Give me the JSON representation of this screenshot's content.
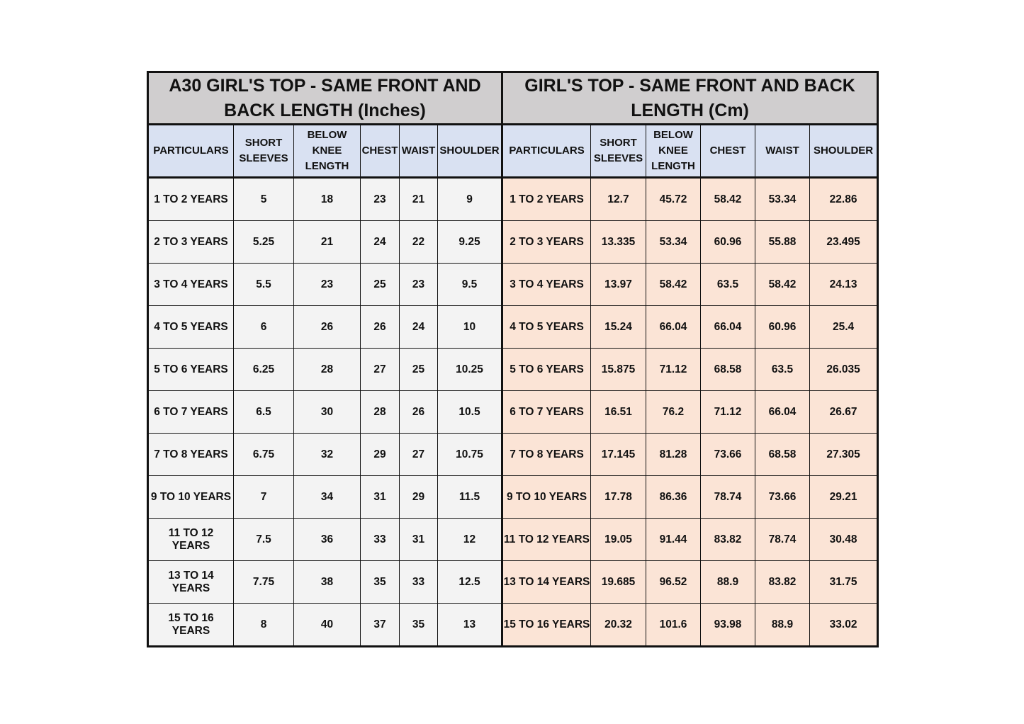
{
  "inches_table": {
    "title": "A30 GIRL'S TOP - SAME FRONT AND BACK LENGTH (Inches)",
    "headers": [
      "PARTICULARS",
      "SHORT SLEEVES",
      "BELOW KNEE LENGTH",
      "CHEST",
      "WAIST",
      "SHOULDER"
    ],
    "rows": [
      [
        "1 TO 2 YEARS",
        "5",
        "18",
        "23",
        "21",
        "9"
      ],
      [
        "2 TO 3 YEARS",
        "5.25",
        "21",
        "24",
        "22",
        "9.25"
      ],
      [
        "3 TO 4 YEARS",
        "5.5",
        "23",
        "25",
        "23",
        "9.5"
      ],
      [
        "4 TO 5 YEARS",
        "6",
        "26",
        "26",
        "24",
        "10"
      ],
      [
        "5 TO 6 YEARS",
        "6.25",
        "28",
        "27",
        "25",
        "10.25"
      ],
      [
        "6 TO 7 YEARS",
        "6.5",
        "30",
        "28",
        "26",
        "10.5"
      ],
      [
        "7 TO 8 YEARS",
        "6.75",
        "32",
        "29",
        "27",
        "10.75"
      ],
      [
        "9 TO 10 YEARS",
        "7",
        "34",
        "31",
        "29",
        "11.5"
      ],
      [
        "11 TO 12 YEARS",
        "7.5",
        "36",
        "33",
        "31",
        "12"
      ],
      [
        "13 TO 14 YEARS",
        "7.75",
        "38",
        "35",
        "33",
        "12.5"
      ],
      [
        "15 TO 16 YEARS",
        "8",
        "40",
        "37",
        "35",
        "13"
      ]
    ]
  },
  "cm_table": {
    "title": "GIRL'S TOP - SAME FRONT AND BACK LENGTH (Cm)",
    "headers": [
      "PARTICULARS",
      "SHORT SLEEVES",
      "BELOW KNEE LENGTH",
      "CHEST",
      "WAIST",
      "SHOULDER"
    ],
    "rows": [
      [
        "1 TO 2 YEARS",
        "12.7",
        "45.72",
        "58.42",
        "53.34",
        "22.86"
      ],
      [
        "2 TO 3 YEARS",
        "13.335",
        "53.34",
        "60.96",
        "55.88",
        "23.495"
      ],
      [
        "3 TO 4 YEARS",
        "13.97",
        "58.42",
        "63.5",
        "58.42",
        "24.13"
      ],
      [
        "4 TO 5 YEARS",
        "15.24",
        "66.04",
        "66.04",
        "60.96",
        "25.4"
      ],
      [
        "5 TO 6 YEARS",
        "15.875",
        "71.12",
        "68.58",
        "63.5",
        "26.035"
      ],
      [
        "6 TO 7 YEARS",
        "16.51",
        "76.2",
        "71.12",
        "66.04",
        "26.67"
      ],
      [
        "7 TO 8 YEARS",
        "17.145",
        "81.28",
        "73.66",
        "68.58",
        "27.305"
      ],
      [
        "9 TO 10 YEARS",
        "17.78",
        "86.36",
        "78.74",
        "73.66",
        "29.21"
      ],
      [
        "11 TO 12 YEARS",
        "19.05",
        "91.44",
        "83.82",
        "78.74",
        "30.48"
      ],
      [
        "13 TO 14 YEARS",
        "19.685",
        "96.52",
        "88.9",
        "83.82",
        "31.75"
      ],
      [
        "15 TO 16 YEARS",
        "20.32",
        "101.6",
        "93.98",
        "88.9",
        "33.02"
      ]
    ]
  },
  "colors": {
    "title_bg": "#d0cecf",
    "header_bg": "#d9e1f2",
    "inches_bg": "#f3f3f3",
    "cm_bg": "#fbe4d6"
  }
}
